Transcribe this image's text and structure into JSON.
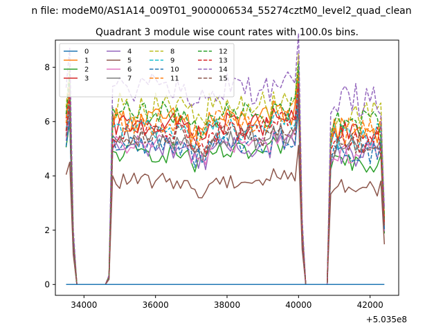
{
  "chart_data": {
    "type": "line",
    "suptitle": "n file: modeM0/AS1A14_009T01_9000006534_55274cztM0_level2_quad_clean",
    "title": "Quadrant 3 module wise count rates with 100.0s bins.",
    "xlabel": "",
    "ylabel": "",
    "x_offset_label": "+5.035e8",
    "xlim": [
      33200,
      42800
    ],
    "ylim": [
      -0.4,
      9.0
    ],
    "x_ticks": [
      34000,
      36000,
      38000,
      40000,
      42000
    ],
    "x_tick_labels": [
      "34000",
      "36000",
      "38000",
      "40000",
      "42000"
    ],
    "y_ticks": [
      0,
      2,
      4,
      6,
      8
    ],
    "y_tick_labels": [
      "0",
      "2",
      "4",
      "6",
      "8"
    ],
    "legend_position": "upper-left",
    "series": [
      {
        "name": "0",
        "color": "#1f77b4",
        "dashed": false,
        "level": 0.0
      },
      {
        "name": "1",
        "color": "#ff7f0e",
        "dashed": false,
        "level": 5.9
      },
      {
        "name": "2",
        "color": "#2ca02c",
        "dashed": false,
        "level": 4.7
      },
      {
        "name": "3",
        "color": "#d62728",
        "dashed": false,
        "level": 5.7
      },
      {
        "name": "4",
        "color": "#9467bd",
        "dashed": false,
        "level": 4.9
      },
      {
        "name": "5",
        "color": "#8c564b",
        "dashed": false,
        "level": 3.7
      },
      {
        "name": "6",
        "color": "#e377c2",
        "dashed": false,
        "level": 5.0
      },
      {
        "name": "7",
        "color": "#7f7f7f",
        "dashed": false,
        "level": 5.2
      },
      {
        "name": "8",
        "color": "#bcbd22",
        "dashed": true,
        "level": 6.4
      },
      {
        "name": "9",
        "color": "#17becf",
        "dashed": true,
        "level": 5.6
      },
      {
        "name": "10",
        "color": "#1f77b4",
        "dashed": true,
        "level": 5.0
      },
      {
        "name": "11",
        "color": "#ff7f0e",
        "dashed": true,
        "level": 5.8
      },
      {
        "name": "12",
        "color": "#2ca02c",
        "dashed": true,
        "level": 6.1
      },
      {
        "name": "13",
        "color": "#d62728",
        "dashed": true,
        "level": 5.5
      },
      {
        "name": "14",
        "color": "#9467bd",
        "dashed": true,
        "level": 7.0
      },
      {
        "name": "15",
        "color": "#8c564b",
        "dashed": true,
        "level": 5.3
      }
    ]
  }
}
